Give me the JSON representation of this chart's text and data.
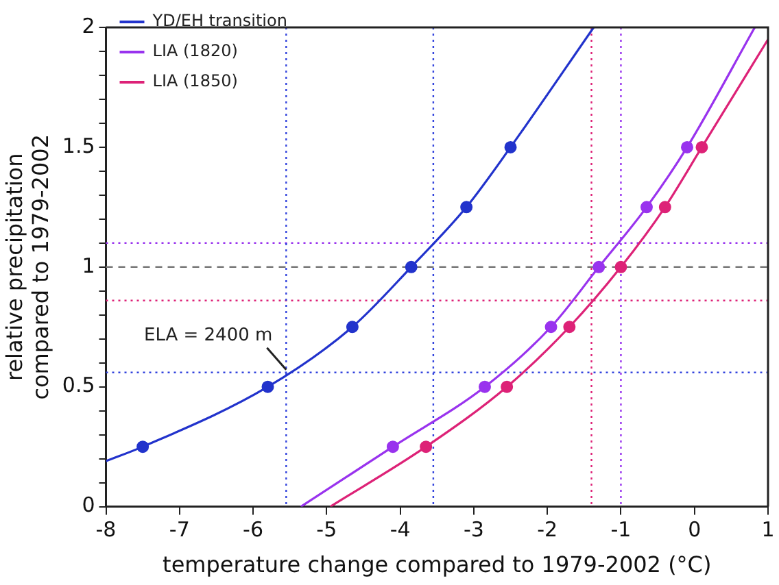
{
  "chart_data": {
    "type": "line",
    "xlabel": "temperature change compared to 1979-2002 (°C)",
    "ylabel": "relative precipitation\ncompared to 1979-2002",
    "xlim": [
      -8,
      1
    ],
    "xticks": [
      -8,
      -7,
      -6,
      -5,
      -4,
      -3,
      -2,
      -1,
      0,
      1
    ],
    "ylim": [
      0,
      2
    ],
    "yticks": [
      0,
      {
        "value": 0.1,
        "label": null
      },
      {
        "value": 0.2,
        "label": null
      },
      {
        "value": 0.3,
        "label": null
      },
      {
        "value": 0.4,
        "label": null
      },
      0.5,
      {
        "value": 0.6,
        "label": null
      },
      {
        "value": 0.7,
        "label": null
      },
      {
        "value": 0.8,
        "label": null
      },
      {
        "value": 0.9,
        "label": null
      },
      1,
      {
        "value": 1.1,
        "label": null
      },
      {
        "value": 1.2,
        "label": null
      },
      {
        "value": 1.3,
        "label": null
      },
      {
        "value": 1.4,
        "label": null
      },
      1.5,
      {
        "value": 1.6,
        "label": null
      },
      {
        "value": 1.7,
        "label": null
      },
      {
        "value": 1.8,
        "label": null
      },
      {
        "value": 1.9,
        "label": null
      },
      2
    ],
    "grid": false,
    "legend": "top left",
    "line_style": "solid",
    "series": [
      {
        "name": "YD/EH transition",
        "marker": "none",
        "color": "#2233cc",
        "x": [
          -8,
          -7.5,
          -5.8,
          -4.65,
          -3.85,
          -3.1,
          -2.5,
          -1.37
        ],
        "values": [
          0.19,
          0.25,
          0.5,
          0.75,
          1.0,
          1.25,
          1.5,
          2
        ]
      },
      {
        "name": "LIA (1820)",
        "marker": "none",
        "color": "#9933ee",
        "x": [
          -5.35,
          -4.1,
          -2.85,
          -1.95,
          -1.3,
          -0.65,
          -0.1,
          0.82
        ],
        "values": [
          0,
          0.25,
          0.5,
          0.75,
          1.0,
          1.25,
          1.5,
          2
        ]
      },
      {
        "name": "LIA (1850)",
        "marker": "none",
        "color": "#dd2277",
        "x": [
          -4.95,
          -3.65,
          -2.55,
          -1.7,
          -1.0,
          -0.4,
          0.1,
          1
        ],
        "values": [
          0,
          0.25,
          0.5,
          0.75,
          1.0,
          1.25,
          1.5,
          1.95
        ]
      },
      {
        "type": "scatter",
        "marker": "circle",
        "color": "#2233cc",
        "x": [
          -7.5,
          -5.8,
          -4.65,
          -3.85,
          -3.1,
          -2.5
        ],
        "values": [
          0.25,
          0.5,
          0.75,
          1.0,
          1.25,
          1.5
        ]
      },
      {
        "type": "scatter",
        "marker": "circle",
        "color": "#9933ee",
        "x": [
          -4.1,
          -2.85,
          -1.95,
          -1.3,
          -0.65,
          -0.1
        ],
        "values": [
          0.25,
          0.5,
          0.75,
          1.0,
          1.25,
          1.5
        ]
      },
      {
        "type": "scatter",
        "marker": "circle",
        "color": "#dd2277",
        "x": [
          -3.65,
          -2.55,
          -1.7,
          -1.0,
          -0.4,
          0.1
        ],
        "values": [
          0.25,
          0.5,
          0.75,
          1.0,
          1.25,
          1.5
        ]
      }
    ],
    "ref_lines": [
      {
        "axis": "y",
        "value": 1,
        "color": "#777777",
        "line_style": "dashed"
      },
      {
        "axis": "y",
        "value": 1.1,
        "color": "#9933ee",
        "line_style": "dotted"
      },
      {
        "axis": "y",
        "value": 0.86,
        "color": "#dd2277",
        "line_style": "dotted"
      },
      {
        "axis": "y",
        "value": 0.56,
        "color": "#3344dd",
        "line_style": "dotted"
      },
      {
        "axis": "x",
        "value": -5.55,
        "color": "#3344dd",
        "line_style": "dotted"
      },
      {
        "axis": "x",
        "value": -3.55,
        "color": "#3344dd",
        "line_style": "dotted"
      },
      {
        "axis": "x",
        "value": -1.4,
        "color": "#dd2277",
        "line_style": "dotted"
      },
      {
        "axis": "x",
        "value": -1.0,
        "color": "#9933ee",
        "line_style": "dotted"
      }
    ],
    "annotations": [
      {
        "text": "ELA = 2400 m",
        "x": -5.55,
        "y": 0.56
      }
    ]
  }
}
